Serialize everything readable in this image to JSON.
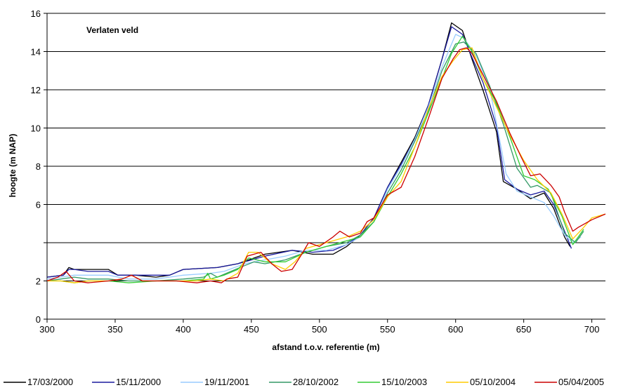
{
  "chart_data": {
    "type": "line",
    "annotation": "Verlaten veld",
    "xlabel": "afstand t.o.v. referentie (m)",
    "ylabel": "hoogte (m NAP)",
    "xlim": [
      300,
      710
    ],
    "ylim": [
      0,
      16
    ],
    "x_ticks": [
      300,
      350,
      400,
      450,
      500,
      550,
      600,
      650,
      700
    ],
    "y_ticks": [
      0,
      2,
      4,
      6,
      8,
      10,
      12,
      14,
      16
    ],
    "y_tick_labels": [
      "0",
      "2",
      "",
      "6",
      "8",
      "10",
      "12",
      "14",
      "16"
    ],
    "grid": "horizontal",
    "legend_position": "bottom",
    "series": [
      {
        "name": "17/03/2000",
        "color": "#000000",
        "points": [
          [
            300,
            2.2
          ],
          [
            312,
            2.3
          ],
          [
            316,
            2.7
          ],
          [
            320,
            2.6
          ],
          [
            330,
            2.6
          ],
          [
            345,
            2.6
          ],
          [
            352,
            2.3
          ],
          [
            365,
            2.3
          ],
          [
            380,
            2.2
          ],
          [
            390,
            2.3
          ],
          [
            400,
            2.6
          ],
          [
            425,
            2.7
          ],
          [
            440,
            2.9
          ],
          [
            460,
            3.4
          ],
          [
            480,
            3.6
          ],
          [
            495,
            3.4
          ],
          [
            510,
            3.4
          ],
          [
            520,
            3.8
          ],
          [
            530,
            4.4
          ],
          [
            540,
            5.3
          ],
          [
            550,
            6.9
          ],
          [
            560,
            8.2
          ],
          [
            570,
            9.5
          ],
          [
            580,
            11.2
          ],
          [
            590,
            13.6
          ],
          [
            597,
            15.5
          ],
          [
            605,
            15.1
          ],
          [
            612,
            13.6
          ],
          [
            620,
            12.0
          ],
          [
            630,
            9.8
          ],
          [
            635,
            7.2
          ],
          [
            645,
            6.8
          ],
          [
            655,
            6.3
          ],
          [
            665,
            6.6
          ],
          [
            672,
            5.8
          ],
          [
            680,
            4.3
          ],
          [
            684,
            3.8
          ]
        ]
      },
      {
        "name": "15/11/2000",
        "color": "#1a1a9e",
        "points": [
          [
            300,
            2.2
          ],
          [
            312,
            2.3
          ],
          [
            316,
            2.6
          ],
          [
            320,
            2.6
          ],
          [
            330,
            2.5
          ],
          [
            345,
            2.5
          ],
          [
            352,
            2.3
          ],
          [
            365,
            2.3
          ],
          [
            380,
            2.3
          ],
          [
            390,
            2.3
          ],
          [
            400,
            2.6
          ],
          [
            425,
            2.7
          ],
          [
            440,
            2.9
          ],
          [
            460,
            3.3
          ],
          [
            480,
            3.6
          ],
          [
            495,
            3.5
          ],
          [
            510,
            3.6
          ],
          [
            520,
            3.9
          ],
          [
            530,
            4.4
          ],
          [
            540,
            5.3
          ],
          [
            550,
            6.9
          ],
          [
            560,
            8.1
          ],
          [
            570,
            9.4
          ],
          [
            580,
            11.2
          ],
          [
            590,
            13.6
          ],
          [
            597,
            15.3
          ],
          [
            605,
            14.9
          ],
          [
            612,
            13.7
          ],
          [
            620,
            12.4
          ],
          [
            630,
            10.1
          ],
          [
            636,
            7.3
          ],
          [
            645,
            6.8
          ],
          [
            655,
            6.5
          ],
          [
            665,
            6.7
          ],
          [
            672,
            6.0
          ],
          [
            680,
            4.6
          ],
          [
            685,
            3.7
          ]
        ]
      },
      {
        "name": "19/11/2001",
        "color": "#99ccff",
        "points": [
          [
            300,
            2.1
          ],
          [
            310,
            2.2
          ],
          [
            320,
            2.3
          ],
          [
            330,
            2.3
          ],
          [
            345,
            2.3
          ],
          [
            360,
            2.1
          ],
          [
            380,
            2.1
          ],
          [
            400,
            2.3
          ],
          [
            420,
            2.4
          ],
          [
            430,
            2.5
          ],
          [
            445,
            2.9
          ],
          [
            460,
            3.1
          ],
          [
            475,
            3.3
          ],
          [
            490,
            3.6
          ],
          [
            505,
            3.6
          ],
          [
            520,
            3.9
          ],
          [
            530,
            4.3
          ],
          [
            540,
            5.1
          ],
          [
            550,
            6.8
          ],
          [
            560,
            8.0
          ],
          [
            570,
            9.4
          ],
          [
            580,
            11.1
          ],
          [
            590,
            13.2
          ],
          [
            600,
            14.9
          ],
          [
            606,
            14.7
          ],
          [
            615,
            13.8
          ],
          [
            625,
            12.1
          ],
          [
            632,
            9.5
          ],
          [
            637,
            7.6
          ],
          [
            645,
            6.7
          ],
          [
            655,
            6.4
          ],
          [
            665,
            6.1
          ],
          [
            672,
            5.4
          ],
          [
            680,
            4.4
          ],
          [
            686,
            4.0
          ],
          [
            692,
            4.3
          ]
        ]
      },
      {
        "name": "28/10/2002",
        "color": "#339966",
        "points": [
          [
            300,
            2.0
          ],
          [
            310,
            2.1
          ],
          [
            320,
            2.2
          ],
          [
            330,
            2.1
          ],
          [
            345,
            2.1
          ],
          [
            360,
            2.0
          ],
          [
            380,
            2.0
          ],
          [
            400,
            2.1
          ],
          [
            415,
            2.2
          ],
          [
            420,
            2.4
          ],
          [
            425,
            2.2
          ],
          [
            435,
            2.5
          ],
          [
            445,
            2.8
          ],
          [
            452,
            3.0
          ],
          [
            460,
            2.9
          ],
          [
            475,
            3.1
          ],
          [
            490,
            3.5
          ],
          [
            505,
            3.8
          ],
          [
            520,
            4.0
          ],
          [
            530,
            4.4
          ],
          [
            540,
            5.1
          ],
          [
            550,
            6.6
          ],
          [
            560,
            7.8
          ],
          [
            570,
            9.3
          ],
          [
            580,
            10.9
          ],
          [
            590,
            13.0
          ],
          [
            600,
            14.4
          ],
          [
            606,
            14.5
          ],
          [
            615,
            13.9
          ],
          [
            625,
            12.2
          ],
          [
            635,
            10.2
          ],
          [
            645,
            7.9
          ],
          [
            655,
            6.9
          ],
          [
            660,
            7.0
          ],
          [
            670,
            6.6
          ],
          [
            680,
            4.5
          ],
          [
            688,
            4.0
          ],
          [
            694,
            4.6
          ]
        ]
      },
      {
        "name": "15/10/2003",
        "color": "#33cc33",
        "points": [
          [
            300,
            2.0
          ],
          [
            310,
            2.0
          ],
          [
            320,
            1.9
          ],
          [
            330,
            2.0
          ],
          [
            345,
            2.0
          ],
          [
            360,
            1.9
          ],
          [
            380,
            2.0
          ],
          [
            400,
            2.0
          ],
          [
            415,
            2.1
          ],
          [
            418,
            2.4
          ],
          [
            420,
            2.1
          ],
          [
            430,
            2.3
          ],
          [
            440,
            2.6
          ],
          [
            448,
            3.2
          ],
          [
            460,
            3.0
          ],
          [
            475,
            3.0
          ],
          [
            490,
            3.5
          ],
          [
            505,
            3.8
          ],
          [
            520,
            4.1
          ],
          [
            530,
            4.3
          ],
          [
            540,
            5.1
          ],
          [
            550,
            6.4
          ],
          [
            560,
            7.6
          ],
          [
            570,
            9.0
          ],
          [
            580,
            10.8
          ],
          [
            590,
            12.6
          ],
          [
            597,
            13.9
          ],
          [
            605,
            14.8
          ],
          [
            612,
            14.0
          ],
          [
            620,
            12.6
          ],
          [
            630,
            11.3
          ],
          [
            640,
            9.5
          ],
          [
            650,
            7.5
          ],
          [
            658,
            7.3
          ],
          [
            668,
            6.8
          ],
          [
            678,
            5.4
          ],
          [
            686,
            3.9
          ],
          [
            694,
            4.7
          ]
        ]
      },
      {
        "name": "05/10/2004",
        "color": "#ffcc00",
        "points": [
          [
            300,
            2.0
          ],
          [
            310,
            2.0
          ],
          [
            320,
            1.9
          ],
          [
            330,
            2.0
          ],
          [
            345,
            2.0
          ],
          [
            355,
            2.1
          ],
          [
            362,
            2.3
          ],
          [
            370,
            2.0
          ],
          [
            380,
            2.0
          ],
          [
            395,
            2.0
          ],
          [
            410,
            2.0
          ],
          [
            420,
            2.1
          ],
          [
            430,
            2.0
          ],
          [
            440,
            2.4
          ],
          [
            448,
            3.5
          ],
          [
            455,
            3.5
          ],
          [
            465,
            2.9
          ],
          [
            475,
            2.6
          ],
          [
            482,
            3.0
          ],
          [
            490,
            3.7
          ],
          [
            500,
            3.9
          ],
          [
            510,
            4.1
          ],
          [
            520,
            4.3
          ],
          [
            530,
            4.6
          ],
          [
            540,
            5.2
          ],
          [
            550,
            6.4
          ],
          [
            560,
            7.2
          ],
          [
            570,
            9.0
          ],
          [
            580,
            11.0
          ],
          [
            590,
            12.7
          ],
          [
            598,
            13.5
          ],
          [
            605,
            14.1
          ],
          [
            612,
            14.2
          ],
          [
            620,
            12.6
          ],
          [
            630,
            11.1
          ],
          [
            640,
            9.6
          ],
          [
            650,
            8.3
          ],
          [
            660,
            7.3
          ],
          [
            670,
            6.6
          ],
          [
            678,
            5.5
          ],
          [
            686,
            4.2
          ],
          [
            694,
            4.8
          ],
          [
            700,
            5.3
          ],
          [
            710,
            5.5
          ]
        ]
      },
      {
        "name": "05/04/2005",
        "color": "#cc0000",
        "points": [
          [
            300,
            2.0
          ],
          [
            308,
            2.2
          ],
          [
            314,
            2.5
          ],
          [
            320,
            2.0
          ],
          [
            330,
            1.9
          ],
          [
            345,
            2.0
          ],
          [
            355,
            2.1
          ],
          [
            362,
            2.3
          ],
          [
            370,
            2.0
          ],
          [
            380,
            2.0
          ],
          [
            395,
            2.0
          ],
          [
            410,
            1.9
          ],
          [
            420,
            2.0
          ],
          [
            428,
            1.9
          ],
          [
            432,
            2.1
          ],
          [
            440,
            2.2
          ],
          [
            447,
            3.3
          ],
          [
            457,
            3.5
          ],
          [
            465,
            2.9
          ],
          [
            472,
            2.5
          ],
          [
            480,
            2.6
          ],
          [
            487,
            3.4
          ],
          [
            492,
            4.0
          ],
          [
            500,
            3.8
          ],
          [
            510,
            4.3
          ],
          [
            515,
            4.6
          ],
          [
            522,
            4.3
          ],
          [
            530,
            4.5
          ],
          [
            535,
            5.1
          ],
          [
            540,
            5.3
          ],
          [
            550,
            6.5
          ],
          [
            560,
            6.9
          ],
          [
            570,
            8.5
          ],
          [
            580,
            10.5
          ],
          [
            590,
            12.6
          ],
          [
            598,
            13.6
          ],
          [
            603,
            14.1
          ],
          [
            608,
            14.2
          ],
          [
            612,
            13.9
          ],
          [
            620,
            12.8
          ],
          [
            630,
            11.4
          ],
          [
            640,
            9.7
          ],
          [
            648,
            8.5
          ],
          [
            655,
            7.5
          ],
          [
            662,
            7.6
          ],
          [
            670,
            7.0
          ],
          [
            676,
            6.4
          ],
          [
            680,
            5.6
          ],
          [
            686,
            4.6
          ],
          [
            690,
            4.8
          ],
          [
            700,
            5.2
          ],
          [
            710,
            5.5
          ]
        ]
      }
    ]
  }
}
